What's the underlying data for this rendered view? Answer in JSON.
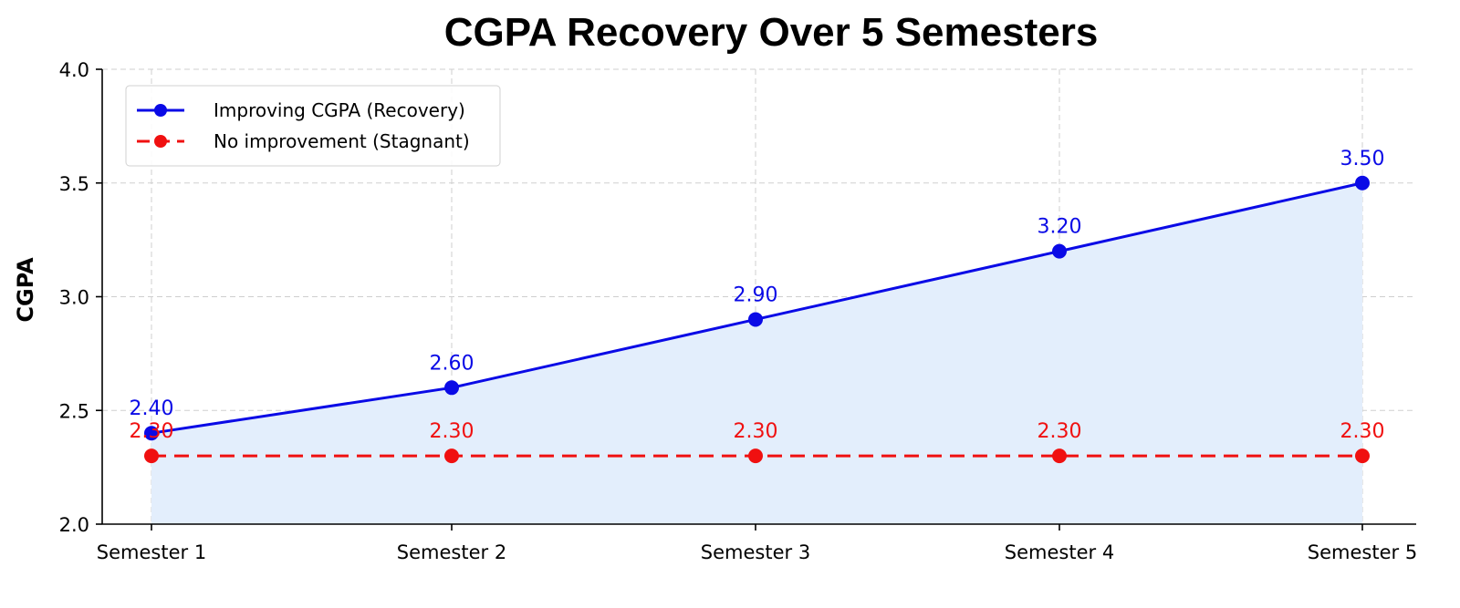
{
  "chart_data": {
    "type": "line",
    "title": "CGPA Recovery Over 5 Semesters",
    "xlabel": "",
    "ylabel": "CGPA",
    "categories": [
      "Semester 1",
      "Semester 2",
      "Semester 3",
      "Semester 4",
      "Semester 5"
    ],
    "ylim": [
      2.0,
      4.0
    ],
    "yticks": [
      "2.0",
      "2.5",
      "3.0",
      "3.5",
      "4.0"
    ],
    "grid": true,
    "legend_position": "top-left",
    "series": [
      {
        "name": "Improving CGPA (Recovery)",
        "values": [
          2.4,
          2.6,
          2.9,
          3.2,
          3.5
        ],
        "labels": [
          "2.40",
          "2.60",
          "2.90",
          "3.20",
          "3.50"
        ],
        "color": "#0a0ae6",
        "dash": false,
        "fill": "#e3eefc"
      },
      {
        "name": "No improvement (Stagnant)",
        "values": [
          2.3,
          2.3,
          2.3,
          2.3,
          2.3
        ],
        "labels": [
          "2.30",
          "2.30",
          "2.30",
          "2.30",
          "2.30"
        ],
        "color": "#f01010",
        "dash": true
      }
    ]
  }
}
